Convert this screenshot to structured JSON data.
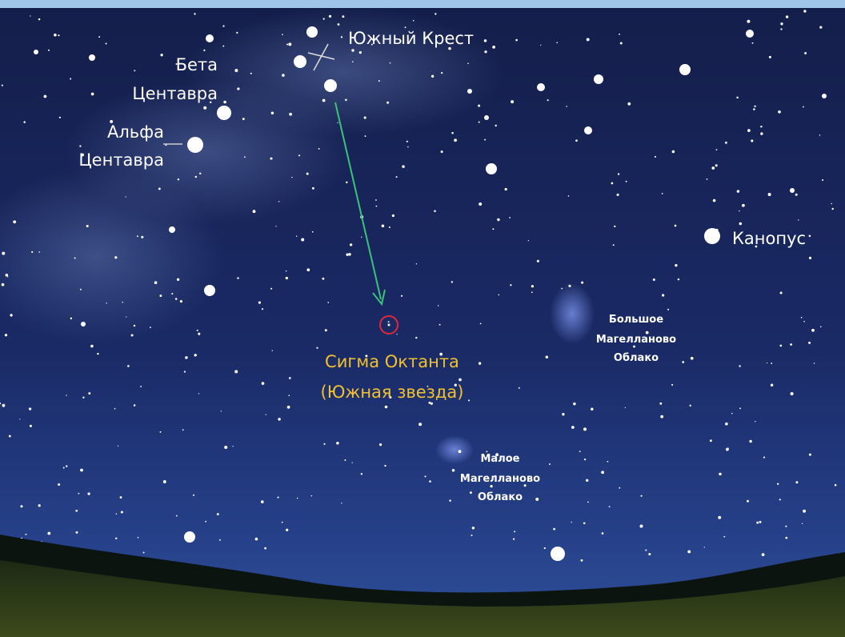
{
  "labels": {
    "southern_cross": "Южный Крест",
    "beta_centauri": [
      "Бета",
      "Центавра"
    ],
    "alpha_centauri": [
      "Альфа",
      "Центавра"
    ],
    "canopus": "Канопус",
    "large_magellanic_cloud": [
      "Большое",
      "Магелланово",
      "Облако"
    ],
    "sigma_octantis": [
      "Сигма Октанта",
      "(Южная звезда)"
    ],
    "small_magellanic_cloud": [
      "Малое",
      "Магелланово",
      "Облако"
    ]
  }
}
